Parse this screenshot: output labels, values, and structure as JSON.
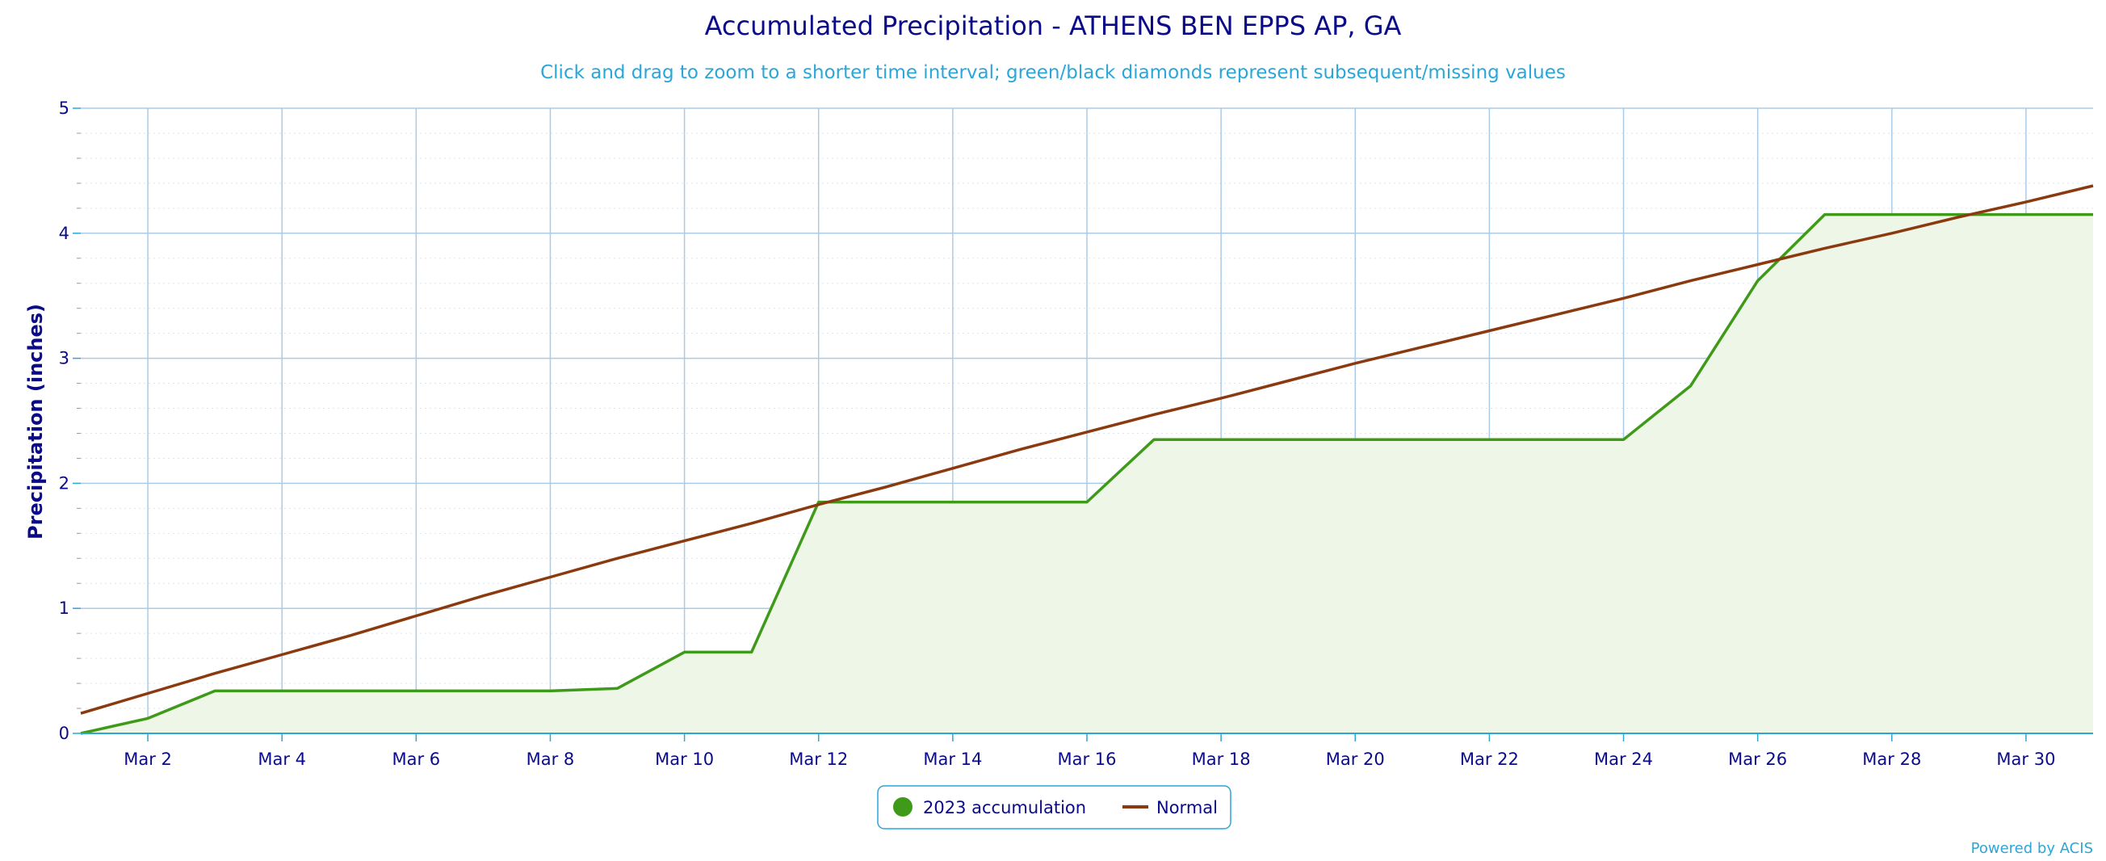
{
  "chart_data": {
    "type": "line",
    "title": "Accumulated Precipitation - ATHENS BEN EPPS AP, GA",
    "subtitle": "Click and drag to zoom to a shorter time interval; green/black diamonds represent subsequent/missing values",
    "ylabel": "Precipitation (inches)",
    "xlabel": "",
    "ylim": [
      0,
      5
    ],
    "xlim": [
      1,
      31
    ],
    "y_ticks": [
      0,
      1,
      2,
      3,
      4,
      5
    ],
    "x_ticks": [
      {
        "day": 2,
        "label": "Mar 2"
      },
      {
        "day": 4,
        "label": "Mar 4"
      },
      {
        "day": 6,
        "label": "Mar 6"
      },
      {
        "day": 8,
        "label": "Mar 8"
      },
      {
        "day": 10,
        "label": "Mar 10"
      },
      {
        "day": 12,
        "label": "Mar 12"
      },
      {
        "day": 14,
        "label": "Mar 14"
      },
      {
        "day": 16,
        "label": "Mar 16"
      },
      {
        "day": 18,
        "label": "Mar 18"
      },
      {
        "day": 20,
        "label": "Mar 20"
      },
      {
        "day": 22,
        "label": "Mar 22"
      },
      {
        "day": 24,
        "label": "Mar 24"
      },
      {
        "day": 26,
        "label": "Mar 26"
      },
      {
        "day": 28,
        "label": "Mar 28"
      },
      {
        "day": 30,
        "label": "Mar 30"
      }
    ],
    "grid": true,
    "legend_position": "bottom-center",
    "series": [
      {
        "name": "2023 accumulation",
        "style": "area",
        "color": "#3f9a1a",
        "fill": "#eef6e8",
        "marker": "circle",
        "x": [
          1,
          2,
          3,
          4,
          5,
          6,
          7,
          8,
          9,
          10,
          11,
          12,
          13,
          14,
          15,
          16,
          17,
          18,
          19,
          20,
          21,
          22,
          23,
          24,
          25,
          26,
          27,
          28,
          29,
          30,
          31
        ],
        "y": [
          0.0,
          0.12,
          0.34,
          0.34,
          0.34,
          0.34,
          0.34,
          0.34,
          0.36,
          0.65,
          0.65,
          1.85,
          1.85,
          1.85,
          1.85,
          1.85,
          2.35,
          2.35,
          2.35,
          2.35,
          2.35,
          2.35,
          2.35,
          2.35,
          2.78,
          3.62,
          4.15,
          4.15,
          4.15,
          4.15,
          4.15
        ]
      },
      {
        "name": "Normal",
        "style": "line",
        "color": "#8b3a0f",
        "marker": "line",
        "x": [
          1,
          2,
          3,
          4,
          5,
          6,
          7,
          8,
          9,
          10,
          11,
          12,
          13,
          14,
          15,
          16,
          17,
          18,
          19,
          20,
          21,
          22,
          23,
          24,
          25,
          26,
          27,
          28,
          29,
          30,
          31
        ],
        "y": [
          0.16,
          0.32,
          0.48,
          0.63,
          0.78,
          0.94,
          1.1,
          1.25,
          1.4,
          1.54,
          1.68,
          1.83,
          1.97,
          2.12,
          2.27,
          2.41,
          2.55,
          2.68,
          2.82,
          2.96,
          3.09,
          3.22,
          3.35,
          3.48,
          3.62,
          3.75,
          3.88,
          4.0,
          4.13,
          4.25,
          4.38
        ]
      }
    ]
  },
  "footer": {
    "credit": "Powered by ACIS"
  }
}
